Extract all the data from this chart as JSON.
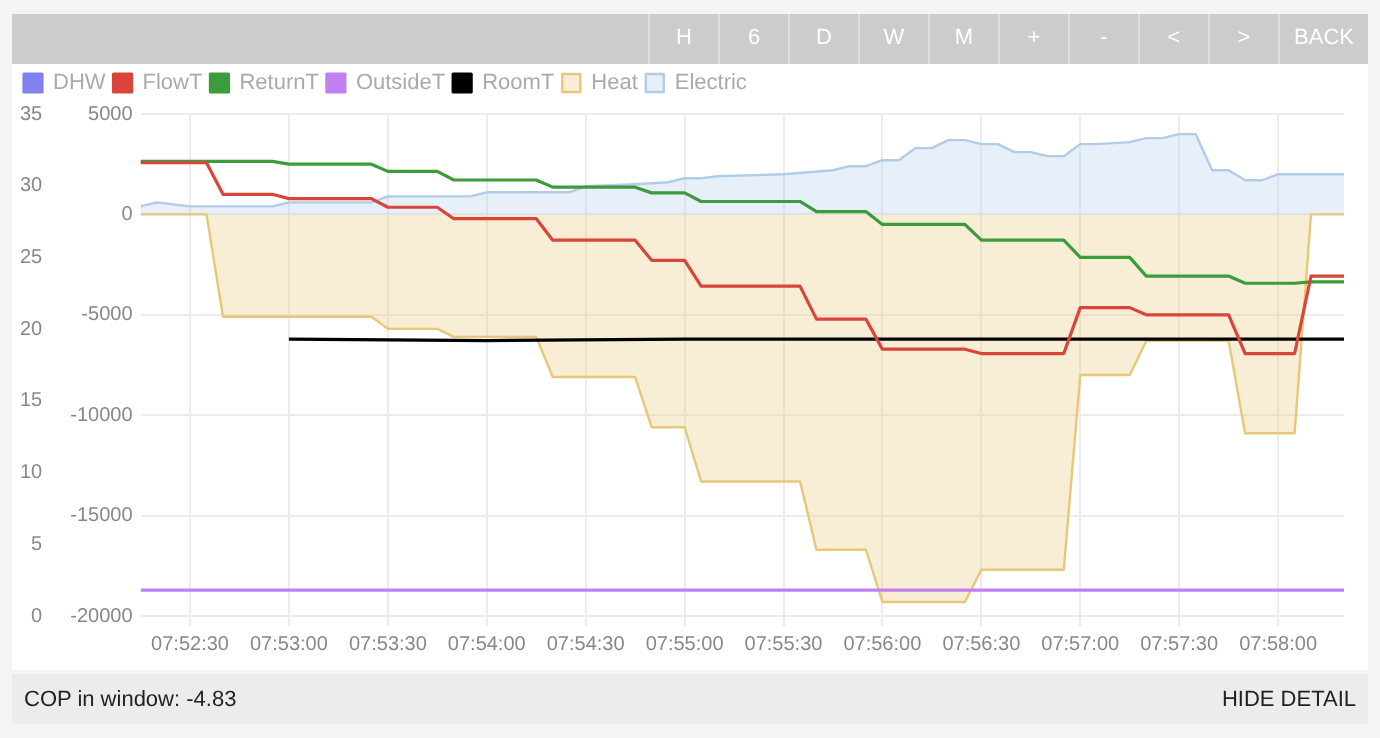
{
  "chart_data": {
    "type": "line",
    "xlim": [
      7.87083,
      7.97222
    ],
    "xticks": [
      {
        "value": 7.875,
        "label": "07:52:30"
      },
      {
        "value": 7.88333,
        "label": "07:53:00"
      },
      {
        "value": 7.89167,
        "label": "07:53:30"
      },
      {
        "value": 7.9,
        "label": "07:54:00"
      },
      {
        "value": 7.90833,
        "label": "07:54:30"
      },
      {
        "value": 7.91667,
        "label": "07:55:00"
      },
      {
        "value": 7.925,
        "label": "07:55:30"
      },
      {
        "value": 7.93333,
        "label": "07:56:00"
      },
      {
        "value": 7.94167,
        "label": "07:56:30"
      },
      {
        "value": 7.95,
        "label": "07:57:00"
      },
      {
        "value": 7.95833,
        "label": "07:57:30"
      },
      {
        "value": 7.96667,
        "label": "07:58:00"
      }
    ],
    "ylim": [
      0,
      35
    ],
    "yticks": [
      0,
      5,
      10,
      15,
      20,
      25,
      30,
      35
    ],
    "y2lim": [
      -20000,
      5000
    ],
    "y2ticks": [
      -20000,
      -15000,
      -10000,
      -5000,
      0,
      5000
    ],
    "grid": true,
    "legend": "top left",
    "marker": "none",
    "series": [
      {
        "name": "DHW",
        "color": "#8080f0"
      },
      {
        "name": "FlowT",
        "color": "#d9453a",
        "x": [
          7.87083,
          7.87639,
          7.87778,
          7.88194,
          7.88333,
          7.89028,
          7.89167,
          7.89583,
          7.89722,
          7.90417,
          7.90556,
          7.9125,
          7.91389,
          7.91667,
          7.91806,
          7.92639,
          7.92778,
          7.93194,
          7.93333,
          7.94028,
          7.94167,
          7.94861,
          7.95,
          7.95417,
          7.95556,
          7.9625,
          7.96389,
          7.96806,
          7.96944,
          7.97222
        ],
        "values": [
          31.6,
          31.6,
          29.4,
          29.4,
          29.1,
          29.1,
          28.5,
          28.5,
          27.7,
          27.7,
          26.2,
          26.2,
          24.8,
          24.8,
          23.0,
          23.0,
          20.7,
          20.7,
          18.6,
          18.6,
          18.3,
          18.3,
          21.5,
          21.5,
          21.0,
          21.0,
          18.3,
          18.3,
          23.7,
          23.7
        ]
      },
      {
        "name": "ReturnT",
        "color": "#3a9c3a",
        "x": [
          7.87083,
          7.88194,
          7.88333,
          7.89028,
          7.89167,
          7.89583,
          7.89722,
          7.90417,
          7.90556,
          7.9125,
          7.91389,
          7.91667,
          7.91806,
          7.92639,
          7.92778,
          7.93194,
          7.93333,
          7.94028,
          7.94167,
          7.94861,
          7.95,
          7.95417,
          7.95556,
          7.9625,
          7.96389,
          7.96806,
          7.96944,
          7.97222
        ],
        "values": [
          31.7,
          31.7,
          31.5,
          31.5,
          31.0,
          31.0,
          30.4,
          30.4,
          29.9,
          29.9,
          29.5,
          29.5,
          28.9,
          28.9,
          28.2,
          28.2,
          27.3,
          27.3,
          26.2,
          26.2,
          25.0,
          25.0,
          23.7,
          23.7,
          23.2,
          23.2,
          23.3,
          23.3
        ]
      },
      {
        "name": "OutsideT",
        "color": "#c080f0",
        "x": [
          7.87083,
          7.97222
        ],
        "values": [
          1.8,
          1.8
        ]
      },
      {
        "name": "RoomT",
        "color": "#000000",
        "x": [
          7.88333,
          7.9,
          7.91667,
          7.97222
        ],
        "values": [
          19.3,
          19.2,
          19.3,
          19.3
        ]
      },
      {
        "name": "Heat",
        "type": "area",
        "axis": "y2",
        "color": "#e8c878",
        "x": [
          7.87083,
          7.87639,
          7.87778,
          7.89028,
          7.89167,
          7.89583,
          7.89722,
          7.90417,
          7.90556,
          7.9125,
          7.91389,
          7.91667,
          7.91806,
          7.92639,
          7.92778,
          7.93194,
          7.93333,
          7.94028,
          7.94167,
          7.94861,
          7.95,
          7.95417,
          7.95556,
          7.9625,
          7.96389,
          7.96806,
          7.96944,
          7.97222
        ],
        "values": [
          0,
          0,
          -5100,
          -5100,
          -5700,
          -5700,
          -6100,
          -6100,
          -8100,
          -8100,
          -10600,
          -10600,
          -13300,
          -13300,
          -16700,
          -16700,
          -19300,
          -19300,
          -17700,
          -17700,
          -8000,
          -8000,
          -6300,
          -6300,
          -10900,
          -10900,
          0,
          0
        ]
      },
      {
        "name": "Electric",
        "type": "area",
        "axis": "y2",
        "color": "#b0cce8",
        "x": [
          7.87083,
          7.87222,
          7.875,
          7.88194,
          7.88333,
          7.89028,
          7.89167,
          7.89861,
          7.9,
          7.90694,
          7.90833,
          7.9125,
          7.91528,
          7.91667,
          7.91806,
          7.91944,
          7.925,
          7.92917,
          7.93056,
          7.93194,
          7.93333,
          7.93472,
          7.93611,
          7.9375,
          7.93889,
          7.94028,
          7.94167,
          7.94306,
          7.94444,
          7.94583,
          7.94722,
          7.94861,
          7.95,
          7.95139,
          7.95417,
          7.95556,
          7.95694,
          7.95833,
          7.95972,
          7.96111,
          7.9625,
          7.96389,
          7.96528,
          7.96667,
          7.97222
        ],
        "values": [
          400,
          600,
          400,
          400,
          600,
          600,
          900,
          900,
          1100,
          1100,
          1400,
          1500,
          1600,
          1800,
          1800,
          1900,
          2000,
          2200,
          2400,
          2400,
          2700,
          2700,
          3300,
          3300,
          3700,
          3700,
          3500,
          3500,
          3100,
          3100,
          2900,
          2900,
          3500,
          3500,
          3600,
          3800,
          3800,
          4000,
          4000,
          2200,
          2200,
          1700,
          1700,
          2000,
          2000
        ]
      }
    ],
    "annotations": [
      "H",
      "6",
      "D",
      "W",
      "M",
      "+",
      "-",
      "<",
      ">",
      "BACK",
      "COP in window: -4.83",
      "HIDE DETAIL"
    ]
  }
}
